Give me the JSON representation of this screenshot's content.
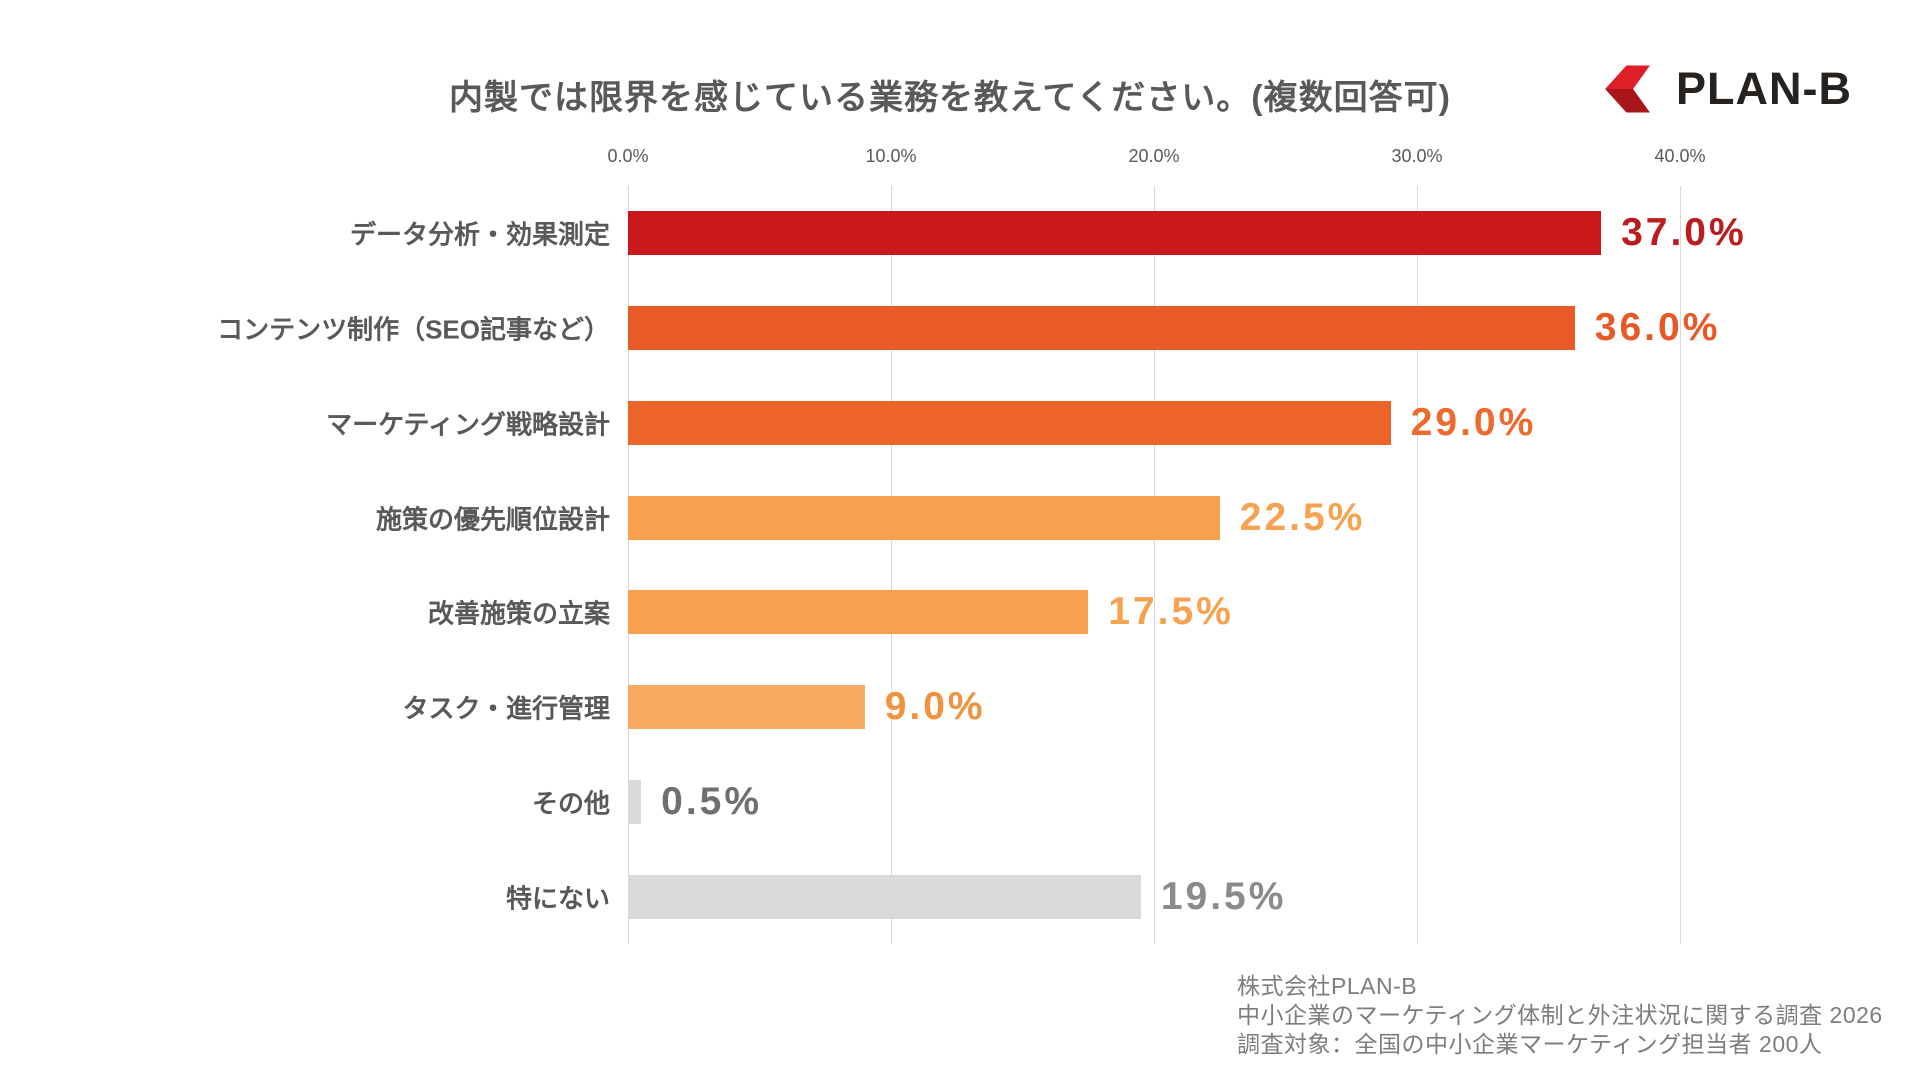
{
  "page": {
    "title": "内製では限界を感じている業務を教えてください。(複数回答可)"
  },
  "logo": {
    "text": "PLAN-B",
    "mark_color_top": "#dd2027",
    "mark_color_bottom": "#a8151a"
  },
  "chart_data": {
    "type": "bar",
    "orientation": "horizontal",
    "title": "内製では限界を感じている業務を教えてください。(複数回答可)",
    "xlabel": "",
    "ylabel": "",
    "grid": true,
    "gridline_color": "#d9d9d9",
    "axis": {
      "min": 0,
      "max": 40,
      "unit": "%",
      "ticks": [
        "0.0%",
        "10.0%",
        "20.0%",
        "30.0%",
        "40.0%"
      ],
      "tick_values": [
        0,
        10,
        20,
        30,
        40
      ],
      "position": "top"
    },
    "categories": [
      "データ分析・効果測定",
      "コンテンツ制作（SEO記事など）",
      "マーケティング戦略設計",
      "施策の優先順位設計",
      "改善施策の立案",
      "タスク・進行管理",
      "その他",
      "特にない"
    ],
    "values": [
      37.0,
      36.0,
      29.0,
      22.5,
      17.5,
      9.0,
      0.5,
      19.5
    ],
    "items": [
      {
        "label": "データ分析・効果測定",
        "value": 37.0,
        "value_label": "37.0%",
        "bar_color": "#c9191c",
        "value_color": "#bd1c1e"
      },
      {
        "label": "コンテンツ制作（SEO記事など）",
        "value": 36.0,
        "value_label": "36.0%",
        "bar_color": "#e85a27",
        "value_color": "#e75a28"
      },
      {
        "label": "マーケティング戦略設計",
        "value": 29.0,
        "value_label": "29.0%",
        "bar_color": "#ed6428",
        "value_color": "#ec6a2e"
      },
      {
        "label": "施策の優先順位設計",
        "value": 22.5,
        "value_label": "22.5%",
        "bar_color": "#f8a04e",
        "value_color": "#f7a250"
      },
      {
        "label": "改善施策の立案",
        "value": 17.5,
        "value_label": "17.5%",
        "bar_color": "#f8a04e",
        "value_color": "#f7a250"
      },
      {
        "label": "タスク・進行管理",
        "value": 9.0,
        "value_label": "9.0%",
        "bar_color": "#f9aa62",
        "value_color": "#f2923e"
      },
      {
        "label": "その他",
        "value": 0.5,
        "value_label": "0.5%",
        "bar_color": "#d9d9d9",
        "value_color": "#6f6f6f"
      },
      {
        "label": "特にない",
        "value": 19.5,
        "value_label": "19.5%",
        "bar_color": "#d9d9d9",
        "value_color": "#8b8b8b"
      }
    ]
  },
  "footer": {
    "lines": [
      "株式会社PLAN-B",
      "中小企業のマーケティング体制と外注状況に関する調査 2026",
      "調査対象：全国の中小企業マーケティング担当者 200人"
    ]
  }
}
